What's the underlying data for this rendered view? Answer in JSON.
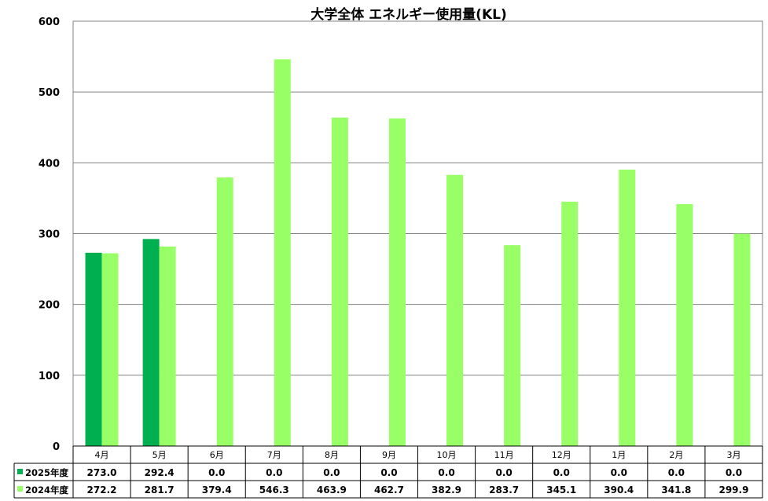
{
  "chart_data": {
    "type": "bar",
    "title": "大学全体 エネルギー使用量(KL)",
    "categories": [
      "4月",
      "5月",
      "6月",
      "7月",
      "8月",
      "9月",
      "10月",
      "11月",
      "12月",
      "1月",
      "2月",
      "3月"
    ],
    "ylim": [
      0,
      600
    ],
    "yticks": [
      0,
      100,
      200,
      300,
      400,
      500,
      600
    ],
    "grid": true,
    "legend": "data-table-bottom",
    "series": [
      {
        "name": "2025年度",
        "color": "#00B050",
        "values": [
          273.0,
          292.4,
          0.0,
          0.0,
          0.0,
          0.0,
          0.0,
          0.0,
          0.0,
          0.0,
          0.0,
          0.0
        ],
        "labels": [
          "273.0",
          "292.4",
          "0.0",
          "0.0",
          "0.0",
          "0.0",
          "0.0",
          "0.0",
          "0.0",
          "0.0",
          "0.0",
          "0.0"
        ]
      },
      {
        "name": "2024年度",
        "color": "#99FF66",
        "values": [
          272.2,
          281.7,
          379.4,
          546.3,
          463.9,
          462.7,
          382.9,
          283.7,
          345.1,
          390.4,
          341.8,
          299.9
        ],
        "labels": [
          "272.2",
          "281.7",
          "379.4",
          "546.3",
          "463.9",
          "462.7",
          "382.9",
          "283.7",
          "345.1",
          "390.4",
          "341.8",
          "299.9"
        ]
      }
    ]
  }
}
